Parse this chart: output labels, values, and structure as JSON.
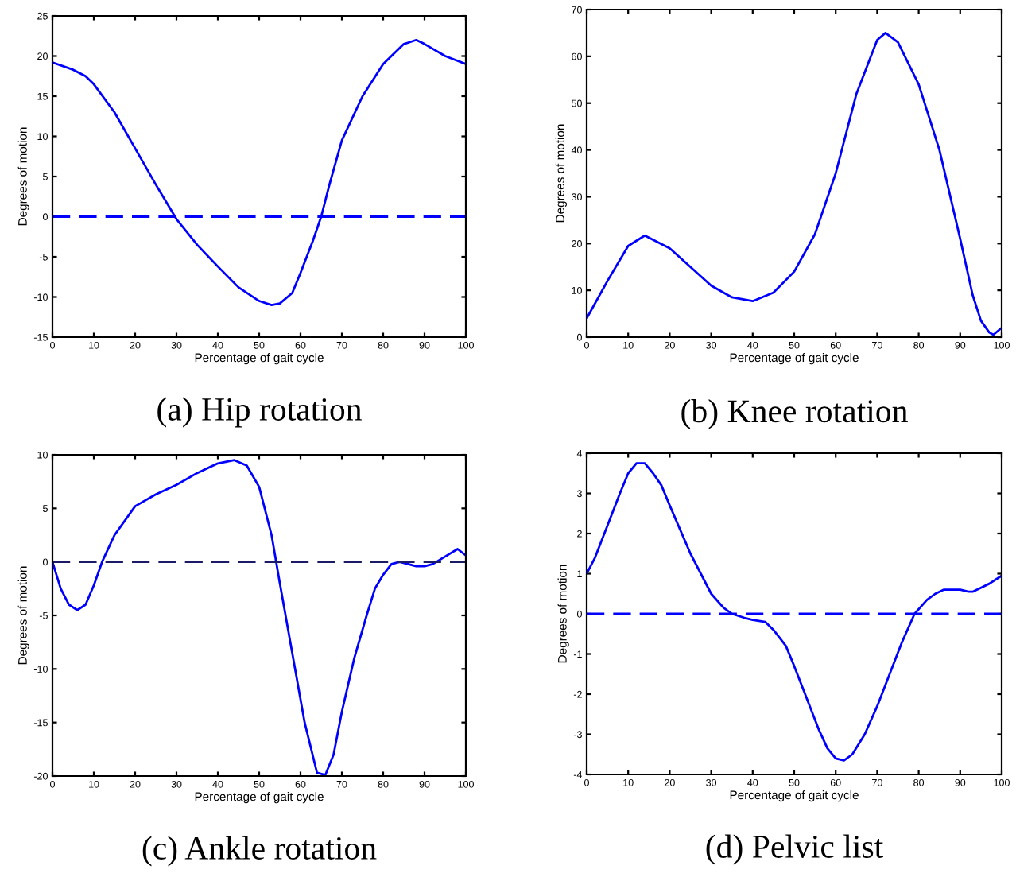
{
  "chart_data": [
    {
      "type": "line",
      "title": "(a) Hip rotation",
      "xlabel": "Percentage of gait cycle",
      "ylabel": "Degrees of motion",
      "xlim": [
        0,
        100
      ],
      "xticks": [
        0,
        10,
        20,
        30,
        40,
        50,
        60,
        70,
        80,
        90,
        100
      ],
      "ylim": [
        -15,
        25
      ],
      "yticks": [
        -15,
        -10,
        -5,
        0,
        5,
        10,
        15,
        20,
        25
      ],
      "grid": false,
      "legend": false,
      "series": [
        {
          "color": "#0000ff",
          "x": [
            0,
            5,
            8,
            10,
            15,
            20,
            25,
            30,
            35,
            40,
            45,
            50,
            53,
            55,
            58,
            60,
            63,
            65,
            67,
            70,
            75,
            80,
            85,
            88,
            90,
            95,
            100
          ],
          "values": [
            19.2,
            18.3,
            17.5,
            16.5,
            13,
            8.5,
            4,
            -0.3,
            -3.5,
            -6.2,
            -8.8,
            -10.5,
            -11,
            -10.8,
            -9.5,
            -7,
            -3,
            0,
            4,
            9.5,
            15,
            19,
            21.5,
            22,
            21.5,
            20,
            19
          ]
        }
      ],
      "ref_lines": [
        {
          "axis": "y",
          "value": 0,
          "color": "#0000ff",
          "line_style": "dashed"
        }
      ]
    },
    {
      "type": "line",
      "title": "(b) Knee rotation",
      "xlabel": "Percentage of gait cycle",
      "ylabel": "Degrees of motion",
      "xlim": [
        0,
        100
      ],
      "xticks": [
        0,
        10,
        20,
        30,
        40,
        50,
        60,
        70,
        80,
        90,
        100
      ],
      "ylim": [
        0,
        70
      ],
      "yticks": [
        0,
        10,
        20,
        30,
        40,
        50,
        60,
        70
      ],
      "grid": false,
      "legend": false,
      "series": [
        {
          "color": "#0000ff",
          "x": [
            0,
            5,
            10,
            14,
            20,
            25,
            30,
            35,
            40,
            45,
            50,
            55,
            60,
            65,
            70,
            72,
            75,
            80,
            85,
            90,
            93,
            95,
            97,
            98,
            100
          ],
          "values": [
            4,
            12,
            19.5,
            21.7,
            19,
            15,
            11,
            8.5,
            7.7,
            9.5,
            14,
            22,
            35,
            52,
            63.5,
            65,
            63,
            54,
            40,
            21,
            9,
            3.5,
            1,
            0.5,
            2
          ]
        }
      ]
    },
    {
      "type": "line",
      "title": "(c) Ankle rotation",
      "xlabel": "Percentage of gait cycle",
      "ylabel": "Degrees of motion",
      "xlim": [
        0,
        100
      ],
      "xticks": [
        0,
        10,
        20,
        30,
        40,
        50,
        60,
        70,
        80,
        90,
        100
      ],
      "ylim": [
        -20,
        10
      ],
      "yticks": [
        -20,
        -15,
        -10,
        -5,
        0,
        5,
        10
      ],
      "grid": false,
      "legend": false,
      "series": [
        {
          "color": "#0000ff",
          "x": [
            0,
            2,
            4,
            6,
            8,
            10,
            12,
            15,
            20,
            25,
            30,
            35,
            40,
            44,
            47,
            50,
            53,
            55,
            58,
            61,
            64,
            66,
            68,
            70,
            73,
            76,
            78,
            80,
            82,
            84,
            86,
            88,
            90,
            92,
            95,
            98,
            100
          ],
          "values": [
            0,
            -2.5,
            -4,
            -4.5,
            -4,
            -2.2,
            0,
            2.5,
            5.2,
            6.3,
            7.2,
            8.3,
            9.2,
            9.5,
            9,
            7,
            2.5,
            -2,
            -8.5,
            -15,
            -19.7,
            -19.9,
            -18,
            -14,
            -9,
            -5,
            -2.5,
            -1.2,
            -0.2,
            0,
            -0.2,
            -0.4,
            -0.4,
            -0.2,
            0.5,
            1.2,
            0.6
          ]
        }
      ],
      "ref_lines": [
        {
          "axis": "y",
          "value": 0,
          "color": "#1a1a66",
          "line_style": "dashed"
        }
      ]
    },
    {
      "type": "line",
      "title": "(d) Pelvic list",
      "xlabel": "Percentage of gait cycle",
      "ylabel": "Degrees of motion",
      "xlim": [
        0,
        100
      ],
      "xticks": [
        0,
        10,
        20,
        30,
        40,
        50,
        60,
        70,
        80,
        90,
        100
      ],
      "ylim": [
        -4,
        4
      ],
      "yticks": [
        -4,
        -3,
        -2,
        -1,
        0,
        1,
        2,
        3,
        4
      ],
      "grid": false,
      "legend": false,
      "series": [
        {
          "color": "#0000ff",
          "x": [
            0,
            2,
            5,
            8,
            10,
            12,
            14,
            16,
            18,
            20,
            25,
            30,
            33,
            35,
            38,
            40,
            43,
            45,
            48,
            50,
            53,
            56,
            58,
            60,
            62,
            64,
            67,
            70,
            73,
            76,
            79,
            82,
            84,
            86,
            88,
            90,
            92,
            93,
            95,
            97,
            100
          ],
          "values": [
            1,
            1.4,
            2.2,
            3,
            3.5,
            3.75,
            3.75,
            3.5,
            3.2,
            2.7,
            1.5,
            0.5,
            0.15,
            0,
            -0.1,
            -0.15,
            -0.2,
            -0.4,
            -0.8,
            -1.3,
            -2.1,
            -2.9,
            -3.35,
            -3.6,
            -3.65,
            -3.5,
            -3,
            -2.3,
            -1.5,
            -0.7,
            0,
            0.35,
            0.5,
            0.6,
            0.6,
            0.6,
            0.55,
            0.55,
            0.65,
            0.75,
            0.95
          ]
        }
      ],
      "ref_lines": [
        {
          "axis": "y",
          "value": 0,
          "color": "#0000ff",
          "line_style": "dashed"
        }
      ]
    }
  ]
}
